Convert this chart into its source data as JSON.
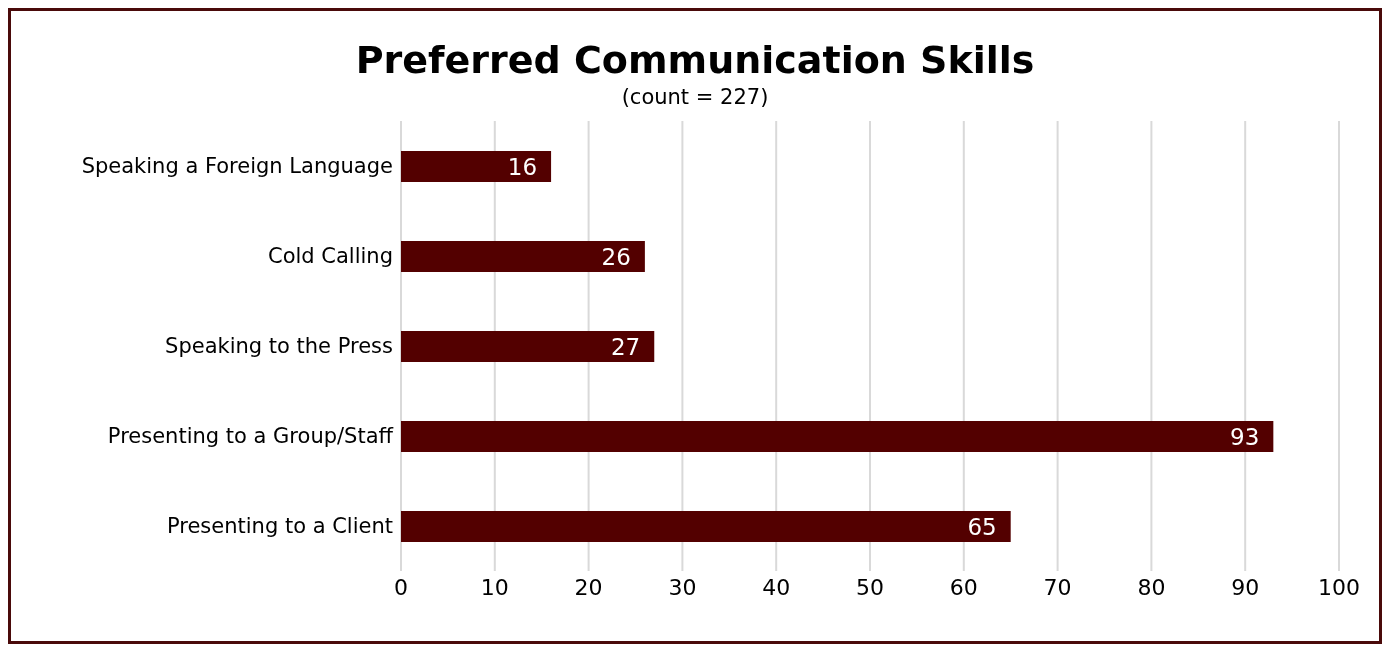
{
  "chart_data": {
    "type": "bar",
    "orientation": "horizontal",
    "title": "Preferred Communication Skills",
    "subtitle": "(count = 227)",
    "categories": [
      "Speaking a Foreign Language",
      "Cold Calling",
      "Speaking to the Press",
      "Presenting to a Group/Staff",
      "Presenting to a Client"
    ],
    "values": [
      16,
      26,
      27,
      93,
      65
    ],
    "color": "#530000",
    "xlim": [
      0,
      100
    ],
    "xticks": [
      0,
      10,
      20,
      30,
      40,
      50,
      60,
      70,
      80,
      90,
      100
    ],
    "grid": "x",
    "data_labels": true
  }
}
